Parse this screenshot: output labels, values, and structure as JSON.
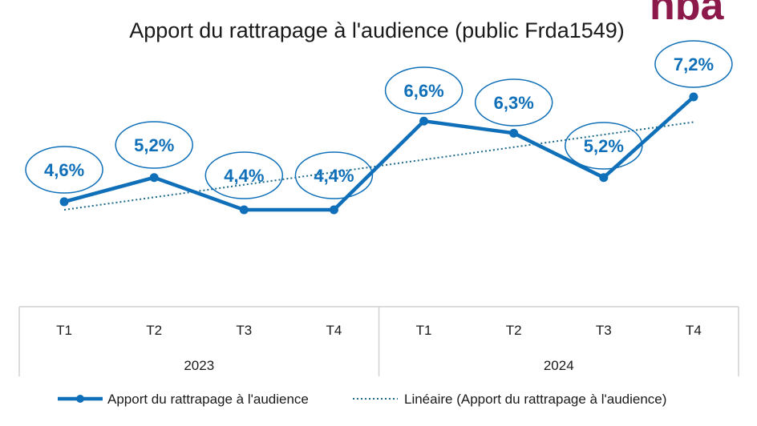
{
  "chart_data": {
    "type": "line",
    "title": "Apport du rattrapage à l'audience (public Frda1549)",
    "categories": [
      "T1",
      "T2",
      "T3",
      "T4",
      "T1",
      "T2",
      "T3",
      "T4"
    ],
    "groups": [
      {
        "label": "2023",
        "categories": [
          "T1",
          "T2",
          "T3",
          "T4"
        ]
      },
      {
        "label": "2024",
        "categories": [
          "T1",
          "T2",
          "T3",
          "T4"
        ]
      }
    ],
    "series": [
      {
        "name": "Apport du rattrapage à l'audience",
        "values": [
          4.6,
          5.2,
          4.4,
          4.4,
          6.6,
          6.3,
          5.2,
          7.2
        ],
        "data_labels": [
          "4,6%",
          "5,2%",
          "4,4%",
          "4,4%",
          "6,6%",
          "6,3%",
          "5,2%",
          "7,2%"
        ],
        "color": "#0f6fb8"
      }
    ],
    "trendline": {
      "name": "Linéaire (Apport du rattrapage à l'audience)",
      "style": "dotted",
      "color": "#1b6a8a"
    },
    "ylabel": "",
    "xlabel": "",
    "ylim": [
      2.5,
      8
    ],
    "grid": false,
    "legend": "bottom"
  },
  "logo": {
    "text": "nba",
    "color": "#8b1a4a"
  }
}
